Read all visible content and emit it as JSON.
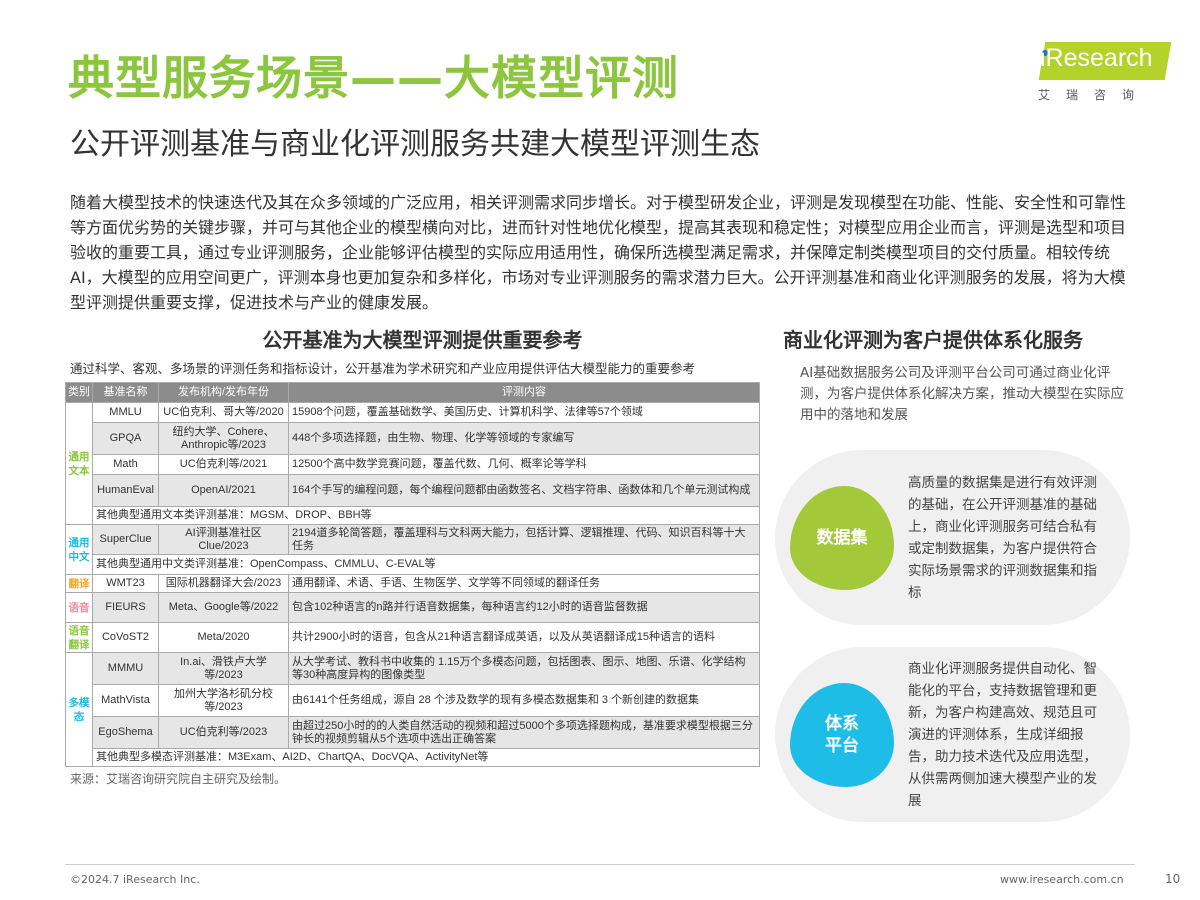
{
  "header": {
    "title": "典型服务场景——大模型评测",
    "subtitle": "公开评测基准与商业化评测服务共建大模型评测生态"
  },
  "logo": {
    "text": "iResearch",
    "cn": "艾瑞咨询",
    "brand_color": "#b5d22a"
  },
  "intro": "随着大模型技术的快速迭代及其在众多领域的广泛应用，相关评测需求同步增长。对于模型研发企业，评测是发现模型在功能、性能、安全性和可靠性等方面优劣势的关键步骤，并可与其他企业的模型横向对比，进而针对性地优化模型，提高其表现和稳定性；对模型应用企业而言，评测是选型和项目验收的重要工具，通过专业评测服务，企业能够评估模型的实际应用适用性，确保所选模型满足需求，并保障定制类模型项目的交付质量。相较传统AI，大模型的应用空间更广，评测本身也更加复杂和多样化，市场对专业评测服务的需求潜力巨大。公开评测基准和商业化评测服务的发展，将为大模型评测提供重要支撑，促进技术与产业的健康发展。",
  "left": {
    "heading": "公开基准为大模型评测提供重要参考",
    "desc": "通过科学、客观、多场景的评测任务和指标设计，公开基准为学术研究和产业应用提供评估大模型能力的重要参考",
    "table": {
      "headers": [
        "类别",
        "基准名称",
        "发布机构/发布年份",
        "评测内容"
      ],
      "categories": {
        "text": "通用文本",
        "chinese": "通用中文",
        "translation": "翻译",
        "speech": "语音",
        "speech_translation": "语音翻译",
        "multimodal": "多模态"
      },
      "rows": [
        {
          "name": "MMLU",
          "org": "UC伯克利、哥大等/2020",
          "content": "15908个问题，覆盖基础数学、美国历史、计算机科学、法律等57个领域"
        },
        {
          "name": "GPQA",
          "org": "纽约大学、Cohere、Anthropic等/2023",
          "content": "448个多项选择题，由生物、物理、化学等领域的专家编写"
        },
        {
          "name": "Math",
          "org": "UC伯克利等/2021",
          "content": "12500个高中数学竞赛问题，覆盖代数、几何、概率论等学科"
        },
        {
          "name": "HumanEval",
          "org": "OpenAI/2021",
          "content": "164个手写的编程问题，每个编程问题都由函数签名、文档字符串、函数体和几个单元测试构成"
        },
        {
          "other": "其他典型通用文本类评测基准：MGSM、DROP、BBH等"
        },
        {
          "name": "SuperClue",
          "org": "AI评测基准社区Clue/2023",
          "content": "2194道多轮简答题，覆盖理科与文科两大能力，包括计算、逻辑推理、代码、知识百科等十大任务"
        },
        {
          "other": "其他典型通用中文类评测基准：OpenCompass、CMMLU、C-EVAL等"
        },
        {
          "name": "WMT23",
          "org": "国际机器翻译大会/2023",
          "content": "通用翻译、术语、手语、生物医学、文学等不同领域的翻译任务"
        },
        {
          "name": "FIEURS",
          "org": "Meta、Google等/2022",
          "content": "包含102种语言的n路并行语音数据集，每种语言约12小时的语音监督数据"
        },
        {
          "name": "CoVoST2",
          "org": "Meta/2020",
          "content": "共计2900小时的语音，包含从21种语言翻译成英语，以及从英语翻译成15种语言的语料"
        },
        {
          "name": "MMMU",
          "org": "In.ai、滑铁卢大学等/2023",
          "content": "从大学考试、教科书中收集的 1.15万个多模态问题，包括图表、图示、地图、乐谱、化学结构等30种高度异构的图像类型"
        },
        {
          "name": "MathVista",
          "org": "加州大学洛杉矶分校等/2023",
          "content": "由6141个任务组成，源自 28 个涉及数学的现有多模态数据集和 3 个新创建的数据集"
        },
        {
          "name": "EgoShema",
          "org": "UC伯克利等/2023",
          "content": "由超过250小时的的人类自然活动的视频和超过5000个多项选择题构成，基准要求模型根据三分钟长的视频剪辑从5个选项中选出正确答案"
        },
        {
          "other": "其他典型多模态评测基准：M3Exam、AI2D、ChartQA、DocVQA、ActivityNet等"
        }
      ]
    },
    "source": "来源：艾瑞咨询研究院自主研究及绘制。"
  },
  "right": {
    "heading": "商业化评测为客户提供体系化服务",
    "desc": "AI基础数据服务公司及评测平台公司可通过商业化评测，为客户提供体系化解决方案，推动大模型在实际应用中的落地和发展",
    "cards": [
      {
        "label": "数据集",
        "text": "高质量的数据集是进行有效评测的基础，在公开评测基准的基础上，商业化评测服务可结合私有或定制数据集，为客户提供符合实际场景需求的评测数据集和指标",
        "color": "#a3c93a"
      },
      {
        "label": "体系\n平台",
        "text": "商业化评测服务提供自动化、智能化的平台，支持数据管理和更新，为客户构建高效、规范且可演进的评测体系，生成详细报告，助力技术迭代及应用选型，从供需两侧加速大模型产业的发展",
        "color": "#1ebde8"
      }
    ]
  },
  "footer": {
    "copyright": "©2024.7 iResearch Inc.",
    "website": "www.iresearch.com.cn",
    "page": "10"
  }
}
